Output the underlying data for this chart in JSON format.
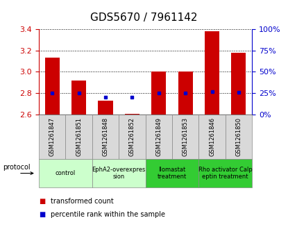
{
  "title": "GDS5670 / 7961142",
  "samples": [
    "GSM1261847",
    "GSM1261851",
    "GSM1261848",
    "GSM1261852",
    "GSM1261849",
    "GSM1261853",
    "GSM1261846",
    "GSM1261850"
  ],
  "transformed_counts": [
    3.13,
    2.92,
    2.73,
    2.61,
    3.0,
    3.0,
    3.38,
    3.18
  ],
  "percentile_rank_values": [
    0.25,
    0.25,
    0.2,
    0.2,
    0.25,
    0.25,
    0.27,
    0.26
  ],
  "ylim_left": [
    2.6,
    3.4
  ],
  "ylim_right": [
    0,
    100
  ],
  "yticks_left": [
    2.6,
    2.8,
    3.0,
    3.2,
    3.4
  ],
  "yticks_right": [
    0,
    25,
    50,
    75,
    100
  ],
  "bar_color": "#cc0000",
  "dot_color": "#0000cc",
  "bar_bottom": 2.6,
  "protocols": [
    {
      "label": "control",
      "cols": [
        0,
        1
      ],
      "color": "#ccffcc"
    },
    {
      "label": "EphA2-overexpres\nsion",
      "cols": [
        2,
        3
      ],
      "color": "#ccffcc"
    },
    {
      "label": "Ilomastat\ntreatment",
      "cols": [
        4,
        5
      ],
      "color": "#33cc33"
    },
    {
      "label": "Rho activator Calp\neptin treatment",
      "cols": [
        6,
        7
      ],
      "color": "#33cc33"
    }
  ],
  "sample_box_color": "#d9d9d9",
  "legend_bar_label": "transformed count",
  "legend_dot_label": "percentile rank within the sample",
  "protocol_label": "protocol",
  "tick_color_left": "#cc0000",
  "tick_color_right": "#0000cc",
  "title_fontsize": 11,
  "tick_fontsize": 8,
  "sample_fontsize": 6,
  "proto_fontsize": 6,
  "legend_fontsize": 7
}
